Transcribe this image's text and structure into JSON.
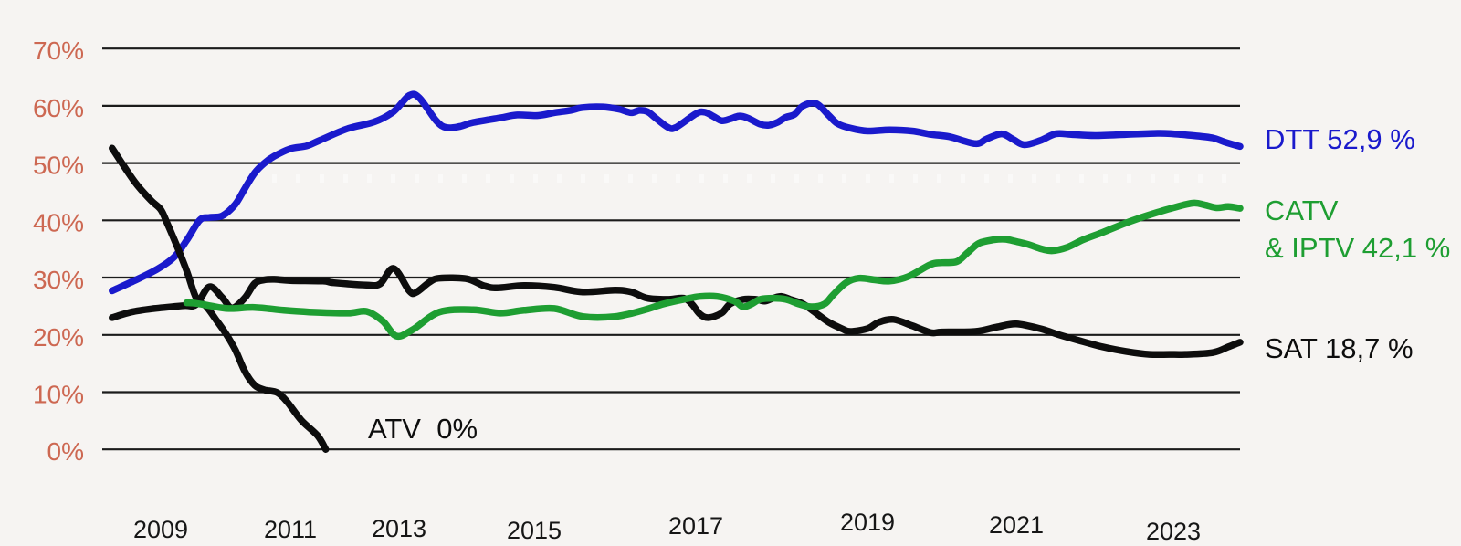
{
  "colors": {
    "background": "#f6f4f2",
    "grid": "#1b1b1b",
    "axis_label": "#cd6852",
    "dtt_blue": "#1a1acc",
    "catv_green": "#1e9e32",
    "line_black": "#0d0d0d"
  },
  "chart_data": {
    "type": "line",
    "grid": true,
    "legend_position": "right-inline-labels",
    "x_axis": {
      "tick_labels": [
        "2009",
        "2011",
        "2013",
        "2015",
        "2017",
        "2019",
        "2021",
        "2023"
      ],
      "tick_values": [
        2009,
        2011,
        2013,
        2015,
        2017,
        2019,
        2021,
        2023
      ],
      "range": [
        2008.2,
        2024.0
      ]
    },
    "y_axis": {
      "tick_labels": [
        "70%",
        "60%",
        "50%",
        "40%",
        "30%",
        "20%",
        "10%",
        "0%"
      ],
      "tick_values": [
        70,
        60,
        50,
        40,
        30,
        20,
        10,
        0
      ],
      "unit": "%",
      "range": [
        0,
        70
      ]
    },
    "annotations": {
      "atv_zero": "ATV  0%"
    },
    "series": [
      {
        "name": "DTT",
        "label": "DTT 52,9 %",
        "end_value": "52,9 %",
        "color": "#1a1acc",
        "points": [
          [
            2008.25,
            27.7
          ],
          [
            2008.6,
            29.5
          ],
          [
            2008.95,
            31.5
          ],
          [
            2009.2,
            33.5
          ],
          [
            2009.4,
            36.5
          ],
          [
            2009.6,
            40.0
          ],
          [
            2009.75,
            40.5
          ],
          [
            2009.95,
            40.8
          ],
          [
            2010.15,
            42.8
          ],
          [
            2010.3,
            45.6
          ],
          [
            2010.45,
            48.3
          ],
          [
            2010.6,
            50.0
          ],
          [
            2010.75,
            51.2
          ],
          [
            2011.0,
            52.5
          ],
          [
            2011.3,
            53.0
          ],
          [
            2011.55,
            54.0
          ],
          [
            2012.05,
            56.0
          ],
          [
            2012.55,
            57.2
          ],
          [
            2012.9,
            59.0
          ],
          [
            2013.15,
            61.8
          ],
          [
            2013.3,
            61.4
          ],
          [
            2013.55,
            57.4
          ],
          [
            2013.7,
            56.2
          ],
          [
            2013.9,
            56.4
          ],
          [
            2014.1,
            57.1
          ],
          [
            2014.5,
            57.9
          ],
          [
            2014.75,
            58.4
          ],
          [
            2015.05,
            58.3
          ],
          [
            2015.25,
            58.8
          ],
          [
            2015.45,
            59.2
          ],
          [
            2015.6,
            59.7
          ],
          [
            2015.85,
            59.8
          ],
          [
            2016.05,
            59.4
          ],
          [
            2016.2,
            58.8
          ],
          [
            2016.3,
            59.2
          ],
          [
            2016.4,
            59.0
          ],
          [
            2016.5,
            57.9
          ],
          [
            2016.65,
            56.3
          ],
          [
            2016.75,
            56.2
          ],
          [
            2017.0,
            58.6
          ],
          [
            2017.1,
            58.9
          ],
          [
            2017.2,
            58.2
          ],
          [
            2017.3,
            57.4
          ],
          [
            2017.4,
            57.7
          ],
          [
            2017.5,
            58.2
          ],
          [
            2017.6,
            57.9
          ],
          [
            2017.75,
            56.8
          ],
          [
            2017.85,
            56.6
          ],
          [
            2017.95,
            57.1
          ],
          [
            2018.05,
            58.0
          ],
          [
            2018.15,
            58.5
          ],
          [
            2018.25,
            60.0
          ],
          [
            2018.4,
            60.4
          ],
          [
            2018.55,
            58.3
          ],
          [
            2018.65,
            56.9
          ],
          [
            2018.8,
            56.1
          ],
          [
            2019.0,
            55.6
          ],
          [
            2019.3,
            55.8
          ],
          [
            2019.6,
            55.6
          ],
          [
            2019.85,
            55.0
          ],
          [
            2020.1,
            54.6
          ],
          [
            2020.45,
            53.4
          ],
          [
            2020.6,
            54.2
          ],
          [
            2020.8,
            55.1
          ],
          [
            2020.95,
            54.2
          ],
          [
            2021.1,
            53.2
          ],
          [
            2021.3,
            53.9
          ],
          [
            2021.5,
            55.1
          ],
          [
            2021.7,
            55.0
          ],
          [
            2022.0,
            54.8
          ],
          [
            2022.4,
            55.0
          ],
          [
            2022.8,
            55.2
          ],
          [
            2023.0,
            55.1
          ],
          [
            2023.25,
            54.8
          ],
          [
            2023.5,
            54.4
          ],
          [
            2023.65,
            53.7
          ],
          [
            2023.85,
            52.9
          ]
        ]
      },
      {
        "name": "CATV & IPTV",
        "label_line1": "CATV",
        "label_line2": "& IPTV 42,1 %",
        "end_value": "42,1 %",
        "color": "#1e9e32",
        "points": [
          [
            2009.4,
            25.6
          ],
          [
            2009.55,
            25.5
          ],
          [
            2009.75,
            25.1
          ],
          [
            2010.05,
            24.6
          ],
          [
            2010.45,
            24.8
          ],
          [
            2010.9,
            24.3
          ],
          [
            2011.35,
            24.0
          ],
          [
            2012.05,
            23.8
          ],
          [
            2012.4,
            24.1
          ],
          [
            2012.7,
            22.4
          ],
          [
            2012.95,
            19.8
          ],
          [
            2013.2,
            20.9
          ],
          [
            2013.6,
            24.0
          ],
          [
            2014.1,
            24.4
          ],
          [
            2014.5,
            23.8
          ],
          [
            2014.85,
            24.3
          ],
          [
            2015.25,
            24.6
          ],
          [
            2015.6,
            23.2
          ],
          [
            2016.0,
            23.2
          ],
          [
            2016.35,
            24.3
          ],
          [
            2016.6,
            25.4
          ],
          [
            2016.85,
            26.2
          ],
          [
            2017.05,
            26.7
          ],
          [
            2017.25,
            26.7
          ],
          [
            2017.45,
            25.9
          ],
          [
            2017.55,
            24.9
          ],
          [
            2017.65,
            25.4
          ],
          [
            2017.75,
            26.2
          ],
          [
            2017.9,
            26.4
          ],
          [
            2018.05,
            26.2
          ],
          [
            2018.2,
            25.4
          ],
          [
            2018.35,
            24.9
          ],
          [
            2018.5,
            25.4
          ],
          [
            2018.6,
            27.0
          ],
          [
            2018.75,
            29.1
          ],
          [
            2018.9,
            29.9
          ],
          [
            2019.1,
            29.6
          ],
          [
            2019.3,
            29.4
          ],
          [
            2019.55,
            30.2
          ],
          [
            2019.85,
            32.3
          ],
          [
            2020.0,
            32.6
          ],
          [
            2020.2,
            32.8
          ],
          [
            2020.35,
            34.4
          ],
          [
            2020.5,
            36.0
          ],
          [
            2020.7,
            36.6
          ],
          [
            2020.85,
            36.7
          ],
          [
            2021.0,
            36.3
          ],
          [
            2021.15,
            35.8
          ],
          [
            2021.3,
            35.1
          ],
          [
            2021.45,
            34.7
          ],
          [
            2021.65,
            35.3
          ],
          [
            2021.85,
            36.6
          ],
          [
            2022.1,
            37.9
          ],
          [
            2022.35,
            39.3
          ],
          [
            2022.55,
            40.3
          ],
          [
            2022.8,
            41.4
          ],
          [
            2023.0,
            42.2
          ],
          [
            2023.25,
            43.0
          ],
          [
            2023.4,
            42.7
          ],
          [
            2023.55,
            42.2
          ],
          [
            2023.7,
            42.4
          ],
          [
            2023.85,
            42.1
          ]
        ]
      },
      {
        "name": "SAT",
        "label": "SAT 18,7 %",
        "end_value": "18,7 %",
        "color": "#0d0d0d",
        "points": [
          [
            2008.25,
            23.0
          ],
          [
            2008.55,
            24.0
          ],
          [
            2008.9,
            24.6
          ],
          [
            2009.35,
            25.1
          ],
          [
            2009.55,
            25.3
          ],
          [
            2009.75,
            28.4
          ],
          [
            2009.95,
            26.5
          ],
          [
            2010.1,
            24.7
          ],
          [
            2010.3,
            26.5
          ],
          [
            2010.45,
            29.0
          ],
          [
            2010.6,
            29.6
          ],
          [
            2010.75,
            29.7
          ],
          [
            2011.0,
            29.5
          ],
          [
            2011.6,
            29.4
          ],
          [
            2011.8,
            29.1
          ],
          [
            2012.4,
            28.7
          ],
          [
            2012.65,
            28.9
          ],
          [
            2012.9,
            31.6
          ],
          [
            2013.15,
            27.7
          ],
          [
            2013.25,
            27.4
          ],
          [
            2013.45,
            29.2
          ],
          [
            2013.6,
            29.9
          ],
          [
            2014.0,
            29.8
          ],
          [
            2014.25,
            28.6
          ],
          [
            2014.45,
            28.2
          ],
          [
            2014.85,
            28.6
          ],
          [
            2015.25,
            28.3
          ],
          [
            2015.6,
            27.5
          ],
          [
            2016.0,
            27.8
          ],
          [
            2016.2,
            27.5
          ],
          [
            2016.4,
            26.4
          ],
          [
            2016.65,
            26.2
          ],
          [
            2016.85,
            26.4
          ],
          [
            2016.95,
            25.4
          ],
          [
            2017.05,
            23.6
          ],
          [
            2017.15,
            23.0
          ],
          [
            2017.3,
            23.8
          ],
          [
            2017.4,
            25.4
          ],
          [
            2017.55,
            26.2
          ],
          [
            2017.7,
            26.2
          ],
          [
            2017.8,
            25.9
          ],
          [
            2017.9,
            26.4
          ],
          [
            2018.0,
            26.7
          ],
          [
            2018.1,
            26.2
          ],
          [
            2018.25,
            25.4
          ],
          [
            2018.4,
            23.8
          ],
          [
            2018.55,
            22.2
          ],
          [
            2018.7,
            21.1
          ],
          [
            2018.8,
            20.6
          ],
          [
            2019.0,
            21.1
          ],
          [
            2019.15,
            22.2
          ],
          [
            2019.35,
            22.7
          ],
          [
            2019.6,
            21.6
          ],
          [
            2019.85,
            20.4
          ],
          [
            2020.0,
            20.5
          ],
          [
            2020.45,
            20.6
          ],
          [
            2020.75,
            21.4
          ],
          [
            2021.0,
            21.9
          ],
          [
            2021.3,
            21.1
          ],
          [
            2021.55,
            20.0
          ],
          [
            2021.8,
            19.0
          ],
          [
            2022.1,
            17.9
          ],
          [
            2022.4,
            17.1
          ],
          [
            2022.7,
            16.6
          ],
          [
            2022.95,
            16.6
          ],
          [
            2023.15,
            16.6
          ],
          [
            2023.5,
            16.9
          ],
          [
            2023.7,
            17.9
          ],
          [
            2023.85,
            18.7
          ]
        ]
      },
      {
        "name": "ATV",
        "label": "ATV  0%",
        "end_value": "0%",
        "color": "#0d0d0d",
        "points": [
          [
            2008.25,
            52.6
          ],
          [
            2008.6,
            46.7
          ],
          [
            2008.85,
            43.5
          ],
          [
            2009.0,
            41.9
          ],
          [
            2009.1,
            39.5
          ],
          [
            2009.25,
            35.5
          ],
          [
            2009.4,
            31.2
          ],
          [
            2009.55,
            26.4
          ],
          [
            2009.7,
            25.0
          ],
          [
            2009.85,
            22.7
          ],
          [
            2010.0,
            20.3
          ],
          [
            2010.15,
            17.4
          ],
          [
            2010.3,
            13.6
          ],
          [
            2010.45,
            11.2
          ],
          [
            2010.6,
            10.4
          ],
          [
            2010.8,
            9.9
          ],
          [
            2010.95,
            8.3
          ],
          [
            2011.2,
            5.1
          ],
          [
            2011.5,
            2.4
          ],
          [
            2011.65,
            0.0
          ]
        ]
      }
    ]
  }
}
